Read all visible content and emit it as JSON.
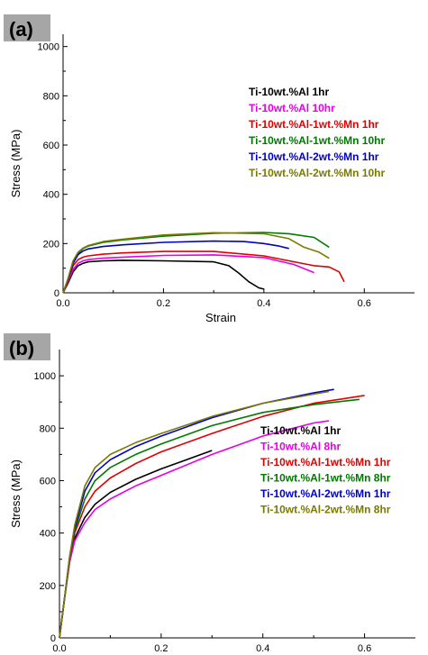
{
  "chart_data": [
    {
      "type": "line",
      "panel_label": "(a)",
      "xlabel": "Strain",
      "ylabel": "Stress (MPa)",
      "xlim": [
        0,
        0.7
      ],
      "ylim": [
        0,
        1050
      ],
      "xticks": [
        0.0,
        0.2,
        0.4,
        0.6
      ],
      "xtick_labels": [
        "0.0",
        "0.2",
        "0.4",
        "0.6"
      ],
      "yticks": [
        0,
        200,
        400,
        600,
        800,
        1000
      ],
      "ytick_labels": [
        "0",
        "200",
        "400",
        "600",
        "800",
        "1000"
      ],
      "legend_position": "upper-right",
      "series": [
        {
          "name": "Ti-10wt.%Al 1hr",
          "color": "#000000",
          "x": [
            0,
            0.01,
            0.02,
            0.03,
            0.04,
            0.05,
            0.08,
            0.12,
            0.2,
            0.3,
            0.33,
            0.35,
            0.37,
            0.39,
            0.4
          ],
          "y": [
            0,
            40,
            85,
            110,
            120,
            126,
            130,
            132,
            130,
            126,
            110,
            80,
            45,
            20,
            15
          ]
        },
        {
          "name": "Ti-10wt.%Al 10hr",
          "color": "#e600e6",
          "x": [
            0,
            0.01,
            0.02,
            0.03,
            0.04,
            0.05,
            0.08,
            0.12,
            0.2,
            0.3,
            0.4,
            0.46,
            0.5
          ],
          "y": [
            0,
            45,
            95,
            120,
            130,
            135,
            141,
            145,
            152,
            154,
            143,
            115,
            82
          ]
        },
        {
          "name": "Ti-10wt.%Al-1wt.%Mn 1hr",
          "color": "#e00000",
          "x": [
            0,
            0.01,
            0.02,
            0.03,
            0.04,
            0.05,
            0.08,
            0.12,
            0.2,
            0.3,
            0.4,
            0.45,
            0.5,
            0.53,
            0.55,
            0.56
          ],
          "y": [
            0,
            50,
            110,
            135,
            145,
            150,
            157,
            162,
            168,
            168,
            150,
            130,
            110,
            105,
            85,
            45
          ]
        },
        {
          "name": "Ti-10wt.%Al-1wt.%Mn 10hr",
          "color": "#007a00",
          "x": [
            0,
            0.01,
            0.02,
            0.03,
            0.04,
            0.05,
            0.08,
            0.12,
            0.2,
            0.3,
            0.4,
            0.45,
            0.5,
            0.53
          ],
          "y": [
            0,
            55,
            125,
            160,
            180,
            190,
            205,
            215,
            230,
            242,
            245,
            240,
            225,
            185
          ]
        },
        {
          "name": "Ti-10wt.%Al-2wt.%Mn 1hr",
          "color": "#0000cc",
          "x": [
            0,
            0.01,
            0.02,
            0.03,
            0.04,
            0.05,
            0.08,
            0.12,
            0.2,
            0.3,
            0.36,
            0.4,
            0.43,
            0.45
          ],
          "y": [
            0,
            55,
            120,
            155,
            170,
            178,
            188,
            195,
            205,
            210,
            208,
            200,
            190,
            180
          ]
        },
        {
          "name": "Ti-10wt.%Al-2wt.%Mn 10hr",
          "color": "#7a7a00",
          "x": [
            0,
            0.01,
            0.02,
            0.03,
            0.04,
            0.05,
            0.08,
            0.12,
            0.2,
            0.3,
            0.4,
            0.45,
            0.48,
            0.51,
            0.53
          ],
          "y": [
            0,
            60,
            130,
            165,
            182,
            192,
            208,
            218,
            235,
            244,
            240,
            220,
            185,
            165,
            140
          ]
        }
      ]
    },
    {
      "type": "line",
      "panel_label": "(b)",
      "xlabel": "Strain",
      "ylabel": "Stress (MPa)",
      "xlim": [
        0,
        0.7
      ],
      "ylim": [
        0,
        1100
      ],
      "xticks": [
        0.0,
        0.2,
        0.4,
        0.6
      ],
      "xtick_labels": [
        "0.0",
        "0.2",
        "0.4",
        "0.6"
      ],
      "yticks": [
        0,
        200,
        400,
        600,
        800,
        1000
      ],
      "ytick_labels": [
        "0",
        "200",
        "400",
        "600",
        "800",
        "1000"
      ],
      "legend_position": "lower-right",
      "series": [
        {
          "name": "Ti-10wt.%Al 1hr",
          "color": "#000000",
          "x": [
            0,
            0.01,
            0.02,
            0.03,
            0.05,
            0.07,
            0.1,
            0.15,
            0.2,
            0.25,
            0.3
          ],
          "y": [
            0,
            150,
            290,
            380,
            460,
            510,
            555,
            605,
            645,
            680,
            715
          ]
        },
        {
          "name": "Ti-10wt.%Al 8hr",
          "color": "#e600e6",
          "x": [
            0,
            0.01,
            0.02,
            0.03,
            0.05,
            0.07,
            0.1,
            0.15,
            0.2,
            0.25,
            0.3,
            0.35,
            0.4,
            0.45,
            0.5,
            0.53
          ],
          "y": [
            0,
            150,
            290,
            370,
            440,
            490,
            530,
            580,
            620,
            660,
            700,
            735,
            770,
            795,
            820,
            828
          ]
        },
        {
          "name": "Ti-10wt.%Al-1wt.%Mn 1hr",
          "color": "#e00000",
          "x": [
            0,
            0.01,
            0.02,
            0.03,
            0.05,
            0.07,
            0.1,
            0.15,
            0.2,
            0.3,
            0.4,
            0.5,
            0.6
          ],
          "y": [
            0,
            150,
            300,
            400,
            500,
            560,
            610,
            665,
            710,
            780,
            845,
            895,
            925
          ]
        },
        {
          "name": "Ti-10wt.%Al-1wt.%Mn 8hr",
          "color": "#007a00",
          "x": [
            0,
            0.01,
            0.02,
            0.03,
            0.05,
            0.07,
            0.1,
            0.15,
            0.2,
            0.3,
            0.4,
            0.5,
            0.59
          ],
          "y": [
            0,
            150,
            305,
            410,
            530,
            600,
            650,
            700,
            740,
            810,
            860,
            890,
            910
          ]
        },
        {
          "name": "Ti-10wt.%Al-2wt.%Mn 1hr",
          "color": "#0000cc",
          "x": [
            0,
            0.01,
            0.02,
            0.03,
            0.05,
            0.07,
            0.1,
            0.15,
            0.2,
            0.3,
            0.4,
            0.5,
            0.54
          ],
          "y": [
            0,
            150,
            310,
            420,
            560,
            630,
            680,
            730,
            770,
            840,
            895,
            935,
            948
          ]
        },
        {
          "name": "Ti-10wt.%Al-2wt.%Mn 8hr",
          "color": "#7a7a00",
          "x": [
            0,
            0.01,
            0.02,
            0.03,
            0.05,
            0.07,
            0.1,
            0.15,
            0.2,
            0.3,
            0.4,
            0.5,
            0.53
          ],
          "y": [
            0,
            150,
            310,
            430,
            580,
            650,
            700,
            745,
            780,
            845,
            895,
            930,
            940
          ]
        }
      ]
    }
  ]
}
